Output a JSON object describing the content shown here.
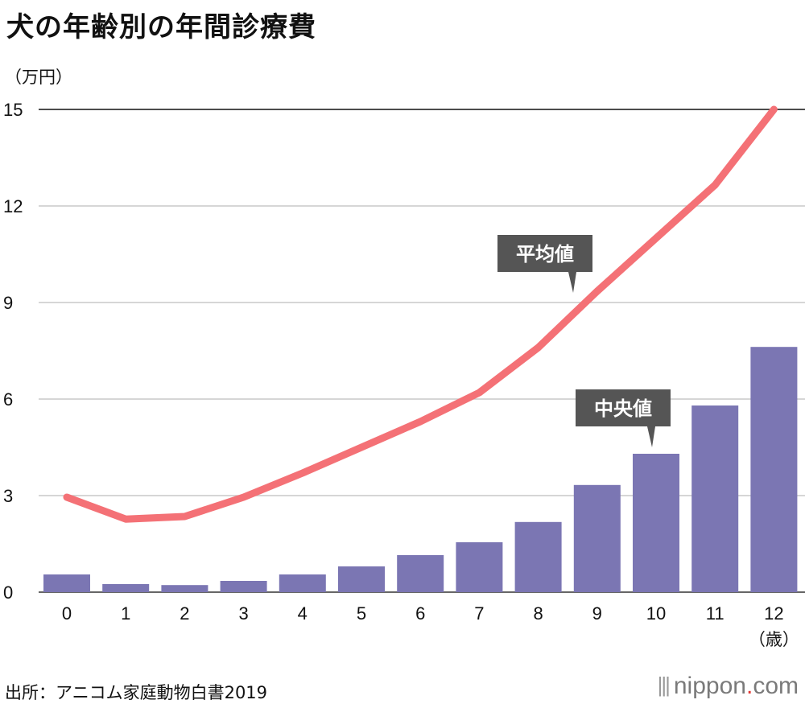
{
  "title": "犬の年齢別の年間診療費",
  "source": "出所：アニコム家庭動物白書2019",
  "brand": {
    "icon": "|||",
    "name": "nippon",
    "dot": ".",
    "tld": "com"
  },
  "chart_data": {
    "type": "bar+line",
    "title": "犬の年齢別の年間診療費",
    "ylabel": "（万円）",
    "xlabel": "（歳）",
    "ylim": [
      0,
      15
    ],
    "yticks": [
      0,
      3,
      6,
      9,
      12,
      15
    ],
    "categories": [
      "0",
      "1",
      "2",
      "3",
      "4",
      "5",
      "6",
      "7",
      "8",
      "9",
      "10",
      "11",
      "12"
    ],
    "series": [
      {
        "name": "中央値",
        "type": "bar",
        "color": "#7b76b3",
        "values": [
          0.55,
          0.25,
          0.22,
          0.35,
          0.55,
          0.8,
          1.15,
          1.55,
          2.18,
          3.33,
          4.3,
          5.8,
          7.62
        ]
      },
      {
        "name": "平均値",
        "type": "line",
        "color": "#f47176",
        "values": [
          2.95,
          2.27,
          2.35,
          2.95,
          3.7,
          4.5,
          5.3,
          6.2,
          7.6,
          9.35,
          11.0,
          12.65,
          15.0
        ]
      }
    ],
    "annotations": [
      {
        "label": "平均値",
        "series": "平均値"
      },
      {
        "label": "中央値",
        "series": "中央値"
      }
    ]
  }
}
